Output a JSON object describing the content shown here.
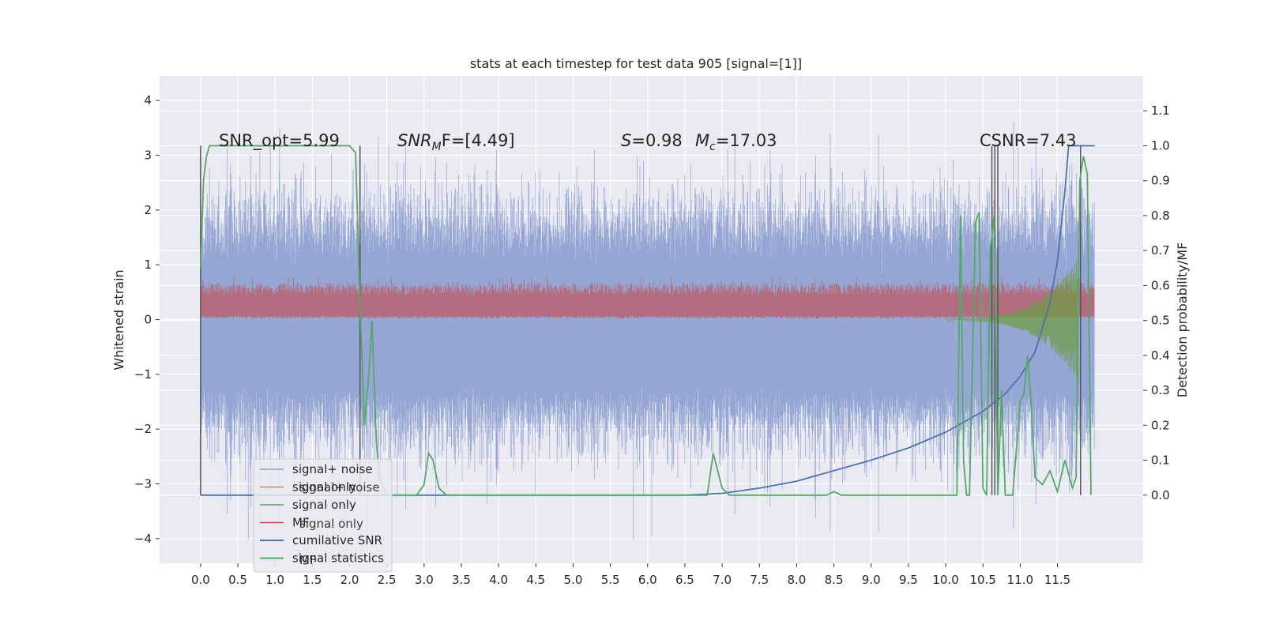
{
  "chart_data": {
    "type": "line",
    "title": "stats at each timestep for test data 905 [signal=[1]]",
    "xlabel": "",
    "ylabel": "Whitened strain",
    "y2label": "Detection probability/MF",
    "xlim": [
      -0.55,
      12.65
    ],
    "ylim": [
      -4.45,
      4.45
    ],
    "y2lim": [
      -0.195,
      1.2
    ],
    "grid": true,
    "xticks": [
      "0.0",
      "0.5",
      "1.0",
      "1.5",
      "2.0",
      "2.5",
      "3.0",
      "3.5",
      "4.0",
      "4.5",
      "5.0",
      "5.5",
      "6.0",
      "6.5",
      "7.0",
      "7.5",
      "8.0",
      "8.5",
      "9.0",
      "9.5",
      "10.0",
      "10.5",
      "11.0",
      "11.5"
    ],
    "yticks": [
      "4",
      "3",
      "2",
      "1",
      "0",
      "−1",
      "−2",
      "−3",
      "−4"
    ],
    "y2ticks": [
      "1.1",
      "1.0",
      "0.9",
      "0.8",
      "0.7",
      "0.6",
      "0.5",
      "0.4",
      "0.3",
      "0.2",
      "0.1",
      "0.0"
    ],
    "annotations": {
      "snr_opt": "SNR_opt=5.99",
      "snr_mf_label": "SNR",
      "snr_mf_sub": "M",
      "snr_mf_rest": "F=[4.49]",
      "s_label": "S",
      "s_rest": "=0.98",
      "mc_label": "M",
      "mc_sub": "c",
      "mc_rest": "=17.03",
      "csnr": "CSNR=7.43"
    },
    "legend_position": "lower-left",
    "legend": [
      {
        "label": "signal+ noise",
        "color": "#8c9fd0"
      },
      {
        "label": "signal only",
        "color": "#dd8452"
      },
      {
        "label": "signal only",
        "color": "#55a868"
      },
      {
        "label": "MF",
        "color": "#c44e52"
      },
      {
        "label": "cumilative SNR",
        "color": "#4c72b0"
      },
      {
        "label": "signal statistics",
        "color": "#55a868"
      }
    ],
    "legend_ghost": [
      "signal+ noise",
      "signal only",
      "MF"
    ],
    "colors": {
      "noise": "#8c9fd0",
      "mf": "#c44e52",
      "chirp": "#6e9c45",
      "cumulative": "#4c72b0",
      "stats": "#55a868",
      "vlines": "#555555",
      "background": "#eaeaf2"
    },
    "series": [
      {
        "name": "signal+ noise",
        "x_range": [
          0.0,
          12.0
        ],
        "approx_range": [
          -4.1,
          4.05
        ],
        "note_level_band": [
          -2.0,
          2.0
        ]
      },
      {
        "name": "MF",
        "x_range": [
          0.0,
          12.0
        ],
        "approx_range": [
          0.0,
          1.0
        ]
      },
      {
        "name": "cumilative SNR",
        "axis": "right",
        "x": [
          0.0,
          6.5,
          7.0,
          7.5,
          8.0,
          8.5,
          9.0,
          9.5,
          10.0,
          10.5,
          10.8,
          11.0,
          11.2,
          11.4,
          11.5,
          11.6,
          11.65,
          11.7,
          12.0
        ],
        "y": [
          0.0,
          0.0,
          0.005,
          0.02,
          0.04,
          0.07,
          0.1,
          0.135,
          0.18,
          0.24,
          0.29,
          0.34,
          0.41,
          0.55,
          0.67,
          0.87,
          1.0,
          1.0,
          1.0
        ]
      },
      {
        "name": "signal statistics",
        "axis": "right",
        "x": [
          0.0,
          0.04,
          0.08,
          0.12,
          0.2,
          0.5,
          1.0,
          1.5,
          2.0,
          2.08,
          2.14,
          2.2,
          2.26,
          2.3,
          2.36,
          2.4,
          2.46,
          2.5,
          2.6,
          2.7,
          2.8,
          2.9,
          3.0,
          3.06,
          3.12,
          3.2,
          3.3,
          3.5,
          4.0,
          5.0,
          6.0,
          6.8,
          6.88,
          7.0,
          7.1,
          7.2,
          7.5,
          8.4,
          8.5,
          8.6,
          9.0,
          10.0,
          10.15,
          10.2,
          10.24,
          10.28,
          10.32,
          10.4,
          10.45,
          10.5,
          10.55,
          10.6,
          10.65,
          10.7,
          10.75,
          10.8,
          10.9,
          11.0,
          11.05,
          11.1,
          11.15,
          11.2,
          11.3,
          11.4,
          11.5,
          11.6,
          11.7,
          11.75,
          11.8,
          11.85,
          11.9,
          11.95
        ],
        "y": [
          0.65,
          0.9,
          0.97,
          1.0,
          1.0,
          1.0,
          1.0,
          1.0,
          1.0,
          0.98,
          0.55,
          0.2,
          0.35,
          0.5,
          0.15,
          0.05,
          0.02,
          0.0,
          0.0,
          0.0,
          0.0,
          0.0,
          0.03,
          0.12,
          0.1,
          0.02,
          0.0,
          0.0,
          0.0,
          0.0,
          0.0,
          0.0,
          0.12,
          0.02,
          0.0,
          0.0,
          0.0,
          0.0,
          0.01,
          0.0,
          0.0,
          0.0,
          0.0,
          0.8,
          0.1,
          0.0,
          0.0,
          0.78,
          0.81,
          0.02,
          0.0,
          0.7,
          0.8,
          0.0,
          0.3,
          0.0,
          0.0,
          0.27,
          0.29,
          0.4,
          0.25,
          0.05,
          0.03,
          0.07,
          0.01,
          0.1,
          0.02,
          0.05,
          0.9,
          0.97,
          0.92,
          0.0
        ]
      },
      {
        "name": "signal only",
        "axis": "left",
        "x_range": [
          10.0,
          12.0
        ],
        "note": "chirp envelope near 0"
      }
    ],
    "vlines": [
      0.0,
      2.14,
      10.62,
      10.66,
      10.7,
      11.81
    ]
  }
}
